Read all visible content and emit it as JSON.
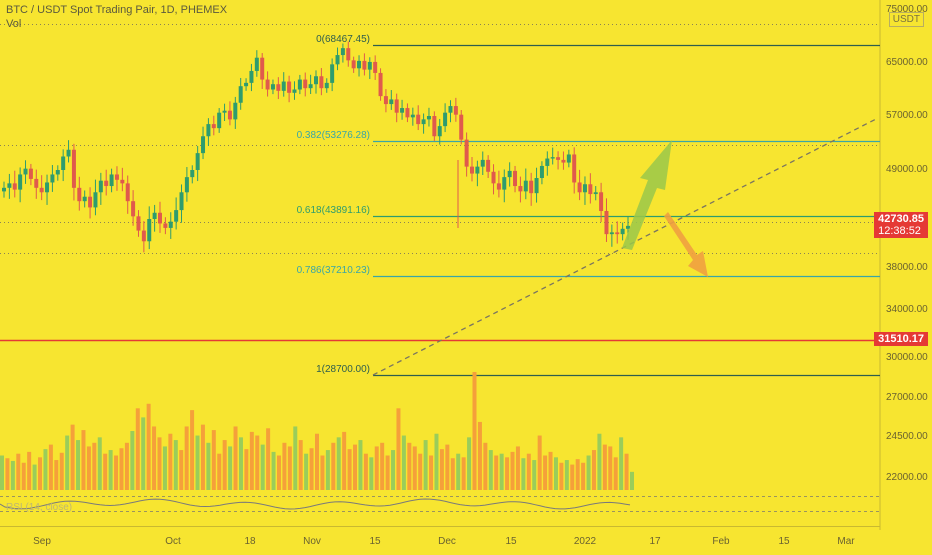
{
  "header": {
    "title": "BTC / USDT Spot Trading Pair, 1D, PHEMEX",
    "vol_label": "Vol"
  },
  "indicator_label": "RSI (14, close)",
  "currency_badge": "USDT",
  "price_tags": {
    "current": {
      "value": "42730.85",
      "countdown": "12:38:52",
      "color": "#e53935"
    },
    "line": {
      "value": "31510.17",
      "color": "#e53935"
    }
  },
  "colors": {
    "background": "#f7e530",
    "up": "#2e9c6e",
    "down": "#e05a4c",
    "vol_up": "#9acd5a",
    "vol_down": "#f5a03a",
    "fib_green": "#2e7d6e",
    "fib_teal": "#3aa6a6",
    "trend": "#7a7560",
    "arrow_up": "#9ac84a",
    "arrow_down": "#f0a040"
  },
  "chart_data": {
    "type": "candlestick",
    "title": "BTC / USDT Spot Trading Pair, 1D, PHEMEX",
    "y_axis": {
      "ticks": [
        "75000.00",
        "65000.00",
        "57000.00",
        "49000.00",
        "38000.00",
        "34000.00",
        "30000.00",
        "27000.00",
        "24500.00",
        "22000.00"
      ],
      "ylim": [
        20000,
        75000
      ]
    },
    "x_axis": {
      "ticks": [
        "Sep",
        "Oct",
        "18",
        "Nov",
        "15",
        "Dec",
        "15",
        "2022",
        "17",
        "Feb",
        "15",
        "Mar"
      ]
    },
    "fibonacci": [
      {
        "label": "0(68467.45)",
        "price": 68467.45,
        "color": "#2e5e4e"
      },
      {
        "label": "0.382(53276.28)",
        "price": 53276.28,
        "color": "#3aa6a6"
      },
      {
        "label": "0.618(43891.16)",
        "price": 43891.16,
        "color": "#2e9c6e"
      },
      {
        "label": "0.786(37210.23)",
        "price": 37210.23,
        "color": "#3aa6a6"
      },
      {
        "label": "1(28700.00)",
        "price": 28700.0,
        "color": "#2e5e4e"
      }
    ],
    "horizontal_lines": [
      {
        "price": 31510.17,
        "color": "#e53935"
      }
    ],
    "close_series": [
      47000,
      47500,
      46800,
      48500,
      49200,
      48000,
      47000,
      46500,
      47600,
      48500,
      49000,
      51000,
      52000,
      47000,
      45500,
      46000,
      44800,
      46500,
      47800,
      47200,
      48500,
      47900,
      47500,
      45500,
      43800,
      42200,
      41000,
      43500,
      44200,
      43000,
      42500,
      43200,
      44500,
      46500,
      48200,
      49000,
      51500,
      54000,
      55800,
      55200,
      57500,
      57800,
      56500,
      59000,
      61500,
      62000,
      63800,
      66000,
      62500,
      61000,
      61800,
      60800,
      62200,
      60500,
      61000,
      62500,
      61200,
      61800,
      63000,
      61200,
      62000,
      64800,
      66500,
      67800,
      65500,
      64200,
      65400,
      64000,
      65200,
      63500,
      60000,
      58800,
      59500,
      57500,
      58200,
      56800,
      57200,
      55800,
      56500,
      57000,
      54000,
      55500,
      57500,
      58500,
      57200,
      53500,
      49500,
      48600,
      49500,
      50500,
      48800,
      47500,
      46800,
      48200,
      48900,
      47200,
      46600,
      47800,
      46400,
      48100,
      49600,
      50700,
      50900,
      50500,
      50100,
      51300,
      47600,
      46500,
      47400,
      46300,
      46500,
      44400,
      41800,
      42000,
      41800,
      42400,
      42730
    ],
    "volume": [
      38,
      35,
      32,
      40,
      30,
      42,
      28,
      36,
      45,
      50,
      33,
      41,
      60,
      72,
      55,
      66,
      48,
      52,
      58,
      40,
      44,
      38,
      46,
      52,
      65,
      90,
      80,
      95,
      70,
      58,
      48,
      62,
      55,
      44,
      70,
      88,
      60,
      72,
      52,
      66,
      40,
      55,
      48,
      70,
      58,
      45,
      64,
      60,
      50,
      68,
      42,
      38,
      52,
      48,
      70,
      55,
      40,
      46,
      62,
      38,
      44,
      52,
      58,
      64,
      45,
      50,
      55,
      40,
      36,
      48,
      52,
      38,
      44,
      90,
      60,
      52,
      48,
      40,
      55,
      38,
      62,
      45,
      50,
      35,
      40,
      36,
      58,
      130,
      75,
      52,
      44,
      38,
      40,
      36,
      42,
      48,
      35,
      40,
      33,
      60,
      38,
      42,
      36,
      30,
      33,
      28,
      34,
      30,
      38,
      44,
      62,
      50,
      48,
      36,
      58,
      40,
      20
    ]
  }
}
